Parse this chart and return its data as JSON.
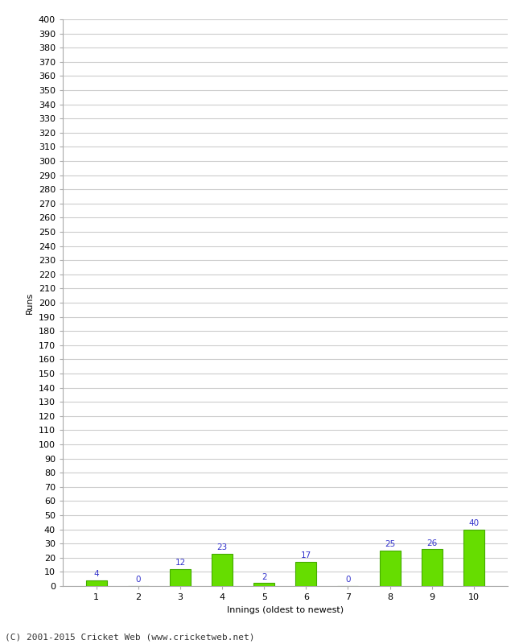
{
  "categories": [
    1,
    2,
    3,
    4,
    5,
    6,
    7,
    8,
    9,
    10
  ],
  "values": [
    4,
    0,
    12,
    23,
    2,
    17,
    0,
    25,
    26,
    40
  ],
  "bar_color": "#66dd00",
  "bar_edge_color": "#44aa00",
  "ylabel": "Runs",
  "xlabel": "Innings (oldest to newest)",
  "ylim": [
    0,
    400
  ],
  "ytick_step": 10,
  "label_color": "#3333cc",
  "footer": "(C) 2001-2015 Cricket Web (www.cricketweb.net)",
  "grid_color": "#cccccc",
  "background_color": "#ffffff",
  "plot_bg_color": "#ffffff",
  "label_fontsize": 7.5,
  "axis_fontsize": 8,
  "footer_fontsize": 8
}
